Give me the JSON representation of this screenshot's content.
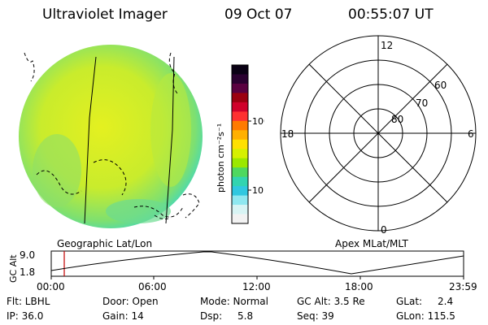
{
  "header": {
    "title": "Ultraviolet Imager",
    "date": "09 Oct 07",
    "time": "00:55:07 UT"
  },
  "colorbar": {
    "unit_label": "photon cm⁻²s⁻¹",
    "ticks": [
      "100",
      "10"
    ],
    "colors": [
      "#0a0014",
      "#2a0030",
      "#5a0040",
      "#9b0010",
      "#d0002a",
      "#ff3030",
      "#ff7a00",
      "#ffb000",
      "#ffe000",
      "#d6f000",
      "#9be800",
      "#4ed860",
      "#32d4b0",
      "#30c8e0",
      "#8fe8f0",
      "#d8f4f4",
      "#f2f2f2"
    ]
  },
  "polar_plot": {
    "lat_labels": [
      "80",
      "70",
      "60"
    ],
    "mlt_labels": [
      "12",
      "18",
      "6",
      "0"
    ]
  },
  "coords": {
    "left": "Geographic Lat/Lon",
    "right": "Apex MLat/MLT"
  },
  "altitude_panel": {
    "axis_label": "GC Alt",
    "y_ticks": [
      "9.0",
      "1.8"
    ],
    "x_ticks": [
      "00:00",
      "06:00",
      "12:00",
      "18:00",
      "23:59"
    ],
    "current_marker_time": "00:55"
  },
  "info": {
    "filter": "Flt: LBHL",
    "door": "Door: Open",
    "mode": "Mode: Normal",
    "gc_alt": "GC Alt: 3.5 Re",
    "glat": "GLat:",
    "glat_val": "2.4",
    "ip": "IP: 36.0",
    "gain": "Gain: 14",
    "dsp": "Dsp:",
    "dsp_val": "5.8",
    "seq": "Seq: 39",
    "glon": "GLon: 115.5"
  }
}
